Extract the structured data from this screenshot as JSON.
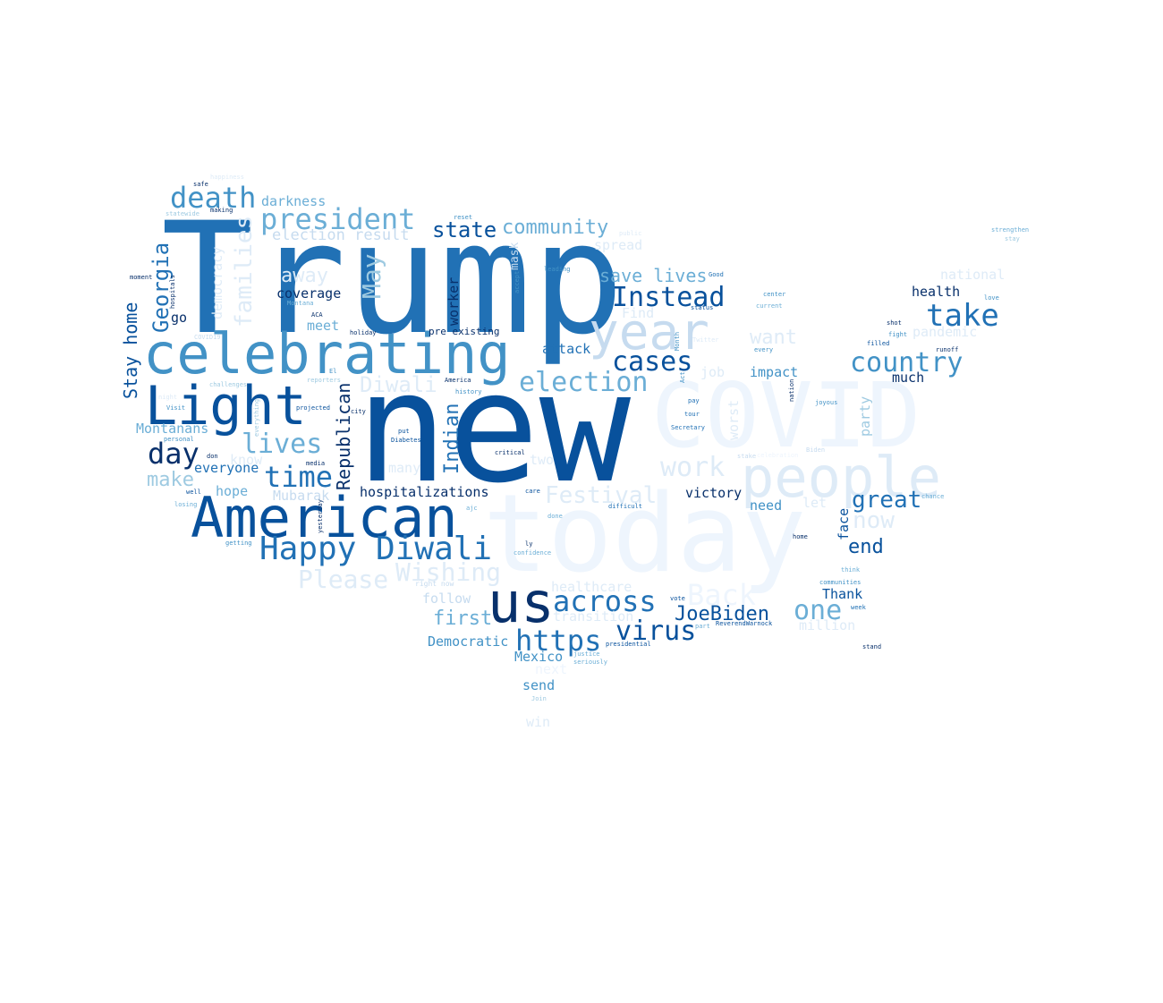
{
  "palette": {
    "c1": "#08306b",
    "c2": "#08519c",
    "c3": "#2171b5",
    "c4": "#4292c6",
    "c5": "#6baed6",
    "c6": "#9ecae1",
    "c7": "#c6dbef",
    "c8": "#deebf7",
    "c9": "#eef5fd"
  },
  "words": [
    {
      "text": "Trump",
      "c": "c3"
    },
    {
      "text": "new",
      "c": "c2"
    },
    {
      "text": "today",
      "c": "c9"
    },
    {
      "text": "COVID",
      "c": "c9"
    },
    {
      "text": "celebrating",
      "c": "c4"
    },
    {
      "text": "American",
      "c": "c2"
    },
    {
      "text": "Light",
      "c": "c2"
    },
    {
      "text": "people",
      "c": "c8"
    },
    {
      "text": "year",
      "c": "c7"
    },
    {
      "text": "us",
      "c": "c1"
    },
    {
      "text": "Happy Diwali",
      "c": "c3"
    },
    {
      "text": "president",
      "c": "c5"
    },
    {
      "text": "death",
      "c": "c4"
    },
    {
      "text": "lives",
      "c": "c5"
    },
    {
      "text": "time",
      "c": "c3"
    },
    {
      "text": "day",
      "c": "c1"
    },
    {
      "text": "across",
      "c": "c3"
    },
    {
      "text": "https",
      "c": "c3"
    },
    {
      "text": "election",
      "c": "c5"
    },
    {
      "text": "cases",
      "c": "c2"
    },
    {
      "text": "Instead",
      "c": "c2"
    },
    {
      "text": "take",
      "c": "c3"
    },
    {
      "text": "country",
      "c": "c4"
    },
    {
      "text": "virus",
      "c": "c2"
    },
    {
      "text": "work",
      "c": "c8"
    },
    {
      "text": "one",
      "c": "c5"
    },
    {
      "text": "great",
      "c": "c3"
    },
    {
      "text": "JoeBiden",
      "c": "c2"
    },
    {
      "text": "Please",
      "c": "c8"
    },
    {
      "text": "Wishing",
      "c": "c8"
    },
    {
      "text": "Festival",
      "c": "c8"
    },
    {
      "text": "Diwali",
      "c": "c8"
    },
    {
      "text": "Back",
      "c": "c9"
    },
    {
      "text": "now",
      "c": "c8"
    },
    {
      "text": "end",
      "c": "c2"
    },
    {
      "text": "state",
      "c": "c2"
    },
    {
      "text": "community",
      "c": "c5"
    },
    {
      "text": "save lives",
      "c": "c5"
    },
    {
      "text": "first",
      "c": "c5"
    },
    {
      "text": "make",
      "c": "c6"
    },
    {
      "text": "away",
      "c": "c8"
    },
    {
      "text": "election result",
      "c": "c7"
    },
    {
      "text": "darkness",
      "c": "c5"
    },
    {
      "text": "want",
      "c": "c8"
    },
    {
      "text": "spread",
      "c": "c8"
    },
    {
      "text": "Democratic",
      "c": "c4"
    },
    {
      "text": "Mexico",
      "c": "c4"
    },
    {
      "text": "send",
      "c": "c4"
    },
    {
      "text": "win",
      "c": "c8"
    },
    {
      "text": "follow",
      "c": "c7"
    },
    {
      "text": "healthcare",
      "c": "c8"
    },
    {
      "text": "transition",
      "c": "c8"
    },
    {
      "text": "million",
      "c": "c8"
    },
    {
      "text": "Thank",
      "c": "c2"
    },
    {
      "text": "victory",
      "c": "c1"
    },
    {
      "text": "need",
      "c": "c4"
    },
    {
      "text": "let",
      "c": "c8"
    },
    {
      "text": "hospitalizations",
      "c": "c1"
    },
    {
      "text": "Mubarak",
      "c": "c7"
    },
    {
      "text": "hope",
      "c": "c5"
    },
    {
      "text": "everyone",
      "c": "c3"
    },
    {
      "text": "know",
      "c": "c8"
    },
    {
      "text": "Montanans",
      "c": "c5"
    },
    {
      "text": "coverage",
      "c": "c1"
    },
    {
      "text": "meet",
      "c": "c5"
    },
    {
      "text": "go",
      "c": "c1"
    },
    {
      "text": "health",
      "c": "c1"
    },
    {
      "text": "national",
      "c": "c8"
    },
    {
      "text": "pandemic",
      "c": "c8"
    },
    {
      "text": "much",
      "c": "c1"
    },
    {
      "text": "impact",
      "c": "c4"
    },
    {
      "text": "job",
      "c": "c8"
    },
    {
      "text": "attack",
      "c": "c3"
    },
    {
      "text": "Find",
      "c": "c8"
    },
    {
      "text": "pre existing",
      "c": "c1"
    },
    {
      "text": "two",
      "c": "c8"
    },
    {
      "text": "many",
      "c": "c8"
    },
    {
      "text": "next",
      "c": "c9"
    },
    {
      "text": "strengthen",
      "c": "c5"
    },
    {
      "text": "stay",
      "c": "c6"
    },
    {
      "text": "happiness",
      "c": "c8"
    },
    {
      "text": "safe",
      "c": "c1"
    },
    {
      "text": "making",
      "c": "c1"
    },
    {
      "text": "statewide",
      "c": "c6"
    },
    {
      "text": "reset",
      "c": "c4"
    },
    {
      "text": "public",
      "c": "c8"
    },
    {
      "text": "leading",
      "c": "c4"
    },
    {
      "text": "Good",
      "c": "c3"
    },
    {
      "text": "center",
      "c": "c4"
    },
    {
      "text": "current",
      "c": "c5"
    },
    {
      "text": "love",
      "c": "c4"
    },
    {
      "text": "moment",
      "c": "c1"
    },
    {
      "text": "Montana",
      "c": "c5"
    },
    {
      "text": "ACA",
      "c": "c1"
    },
    {
      "text": "holiday",
      "c": "c1"
    },
    {
      "text": "status",
      "c": "c2"
    },
    {
      "text": "shot",
      "c": "c1"
    },
    {
      "text": "fight",
      "c": "c4"
    },
    {
      "text": "filled",
      "c": "c2"
    },
    {
      "text": "runoff",
      "c": "c1"
    },
    {
      "text": "every",
      "c": "c4"
    },
    {
      "text": "COVID19",
      "c": "c7"
    },
    {
      "text": "challenges",
      "c": "c6"
    },
    {
      "text": "El",
      "c": "c4"
    },
    {
      "text": "reporters",
      "c": "c6"
    },
    {
      "text": "history",
      "c": "c4"
    },
    {
      "text": "America",
      "c": "c1"
    },
    {
      "text": "joyous",
      "c": "c4"
    },
    {
      "text": "night",
      "c": "c8"
    },
    {
      "text": "Visit",
      "c": "c4"
    },
    {
      "text": "projected",
      "c": "c2"
    },
    {
      "text": "city",
      "c": "c1"
    },
    {
      "text": "pay",
      "c": "c3"
    },
    {
      "text": "tour",
      "c": "c3"
    },
    {
      "text": "Secretary",
      "c": "c3"
    },
    {
      "text": "personal",
      "c": "c4"
    },
    {
      "text": "put",
      "c": "c2"
    },
    {
      "text": "Diabetes",
      "c": "c2"
    },
    {
      "text": "critical",
      "c": "c1"
    },
    {
      "text": "don",
      "c": "c1"
    },
    {
      "text": "media",
      "c": "c1"
    },
    {
      "text": "Biden",
      "c": "c7"
    },
    {
      "text": "stake",
      "c": "c7"
    },
    {
      "text": "celebration",
      "c": "c9"
    },
    {
      "text": "well",
      "c": "c2"
    },
    {
      "text": "losing",
      "c": "c5"
    },
    {
      "text": "care",
      "c": "c2"
    },
    {
      "text": "ajc",
      "c": "c5"
    },
    {
      "text": "done",
      "c": "c5"
    },
    {
      "text": "difficult",
      "c": "c3"
    },
    {
      "text": "chance",
      "c": "c5"
    },
    {
      "text": "getting",
      "c": "c4"
    },
    {
      "text": "ly",
      "c": "c1"
    },
    {
      "text": "confidence",
      "c": "c5"
    },
    {
      "text": "home",
      "c": "c1"
    },
    {
      "text": "think",
      "c": "c5"
    },
    {
      "text": "communities",
      "c": "c4"
    },
    {
      "text": "week",
      "c": "c3"
    },
    {
      "text": "vote",
      "c": "c2"
    },
    {
      "text": "part",
      "c": "c5"
    },
    {
      "text": "ReverendWarnock",
      "c": "c2"
    },
    {
      "text": "presidential",
      "c": "c2"
    },
    {
      "text": "justice",
      "c": "c5"
    },
    {
      "text": "seriously",
      "c": "c5"
    },
    {
      "text": "stand",
      "c": "c1"
    },
    {
      "text": "right now",
      "c": "c7"
    },
    {
      "text": "Join",
      "c": "c6"
    },
    {
      "text": "Twitter",
      "c": "c8"
    },
    {
      "text": "Georgia",
      "c": "c3"
    },
    {
      "text": "Stay home",
      "c": "c2"
    },
    {
      "text": "families",
      "c": "c8"
    },
    {
      "text": "democracy",
      "c": "c8"
    },
    {
      "text": "May",
      "c": "c6"
    },
    {
      "text": "Republican",
      "c": "c1"
    },
    {
      "text": "Indian",
      "c": "c3"
    },
    {
      "text": "worker",
      "c": "c1"
    },
    {
      "text": "mask",
      "c": "c7"
    },
    {
      "text": "worst",
      "c": "c8"
    },
    {
      "text": "party",
      "c": "c6"
    },
    {
      "text": "face",
      "c": "c2"
    },
    {
      "text": "hospitals",
      "c": "c1"
    },
    {
      "text": "accept",
      "c": "c4"
    },
    {
      "text": "Month",
      "c": "c4"
    },
    {
      "text": "Act",
      "c": "c4"
    },
    {
      "text": "nation",
      "c": "c1"
    },
    {
      "text": "everything",
      "c": "c6"
    },
    {
      "text": "yesterday",
      "c": "c1"
    }
  ]
}
